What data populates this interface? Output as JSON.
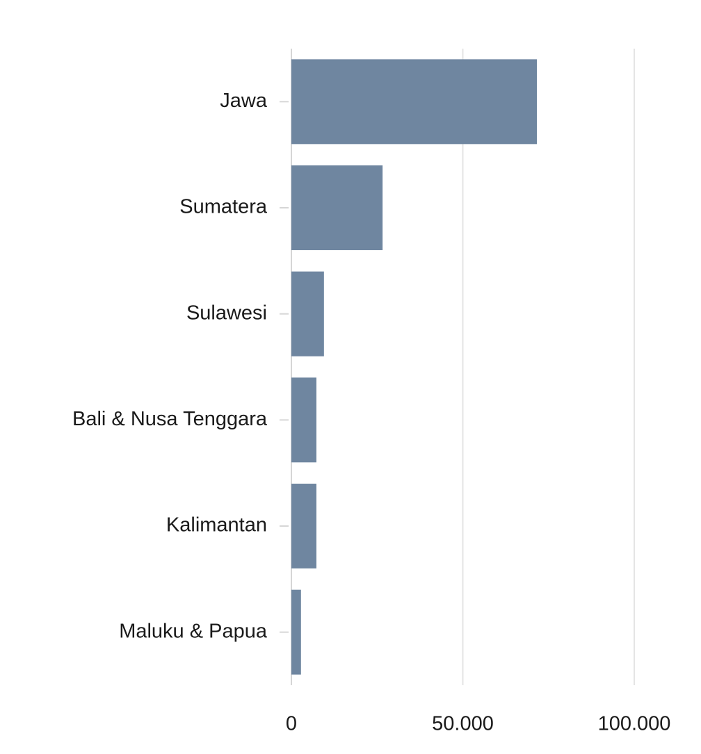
{
  "chart_data": {
    "type": "bar",
    "orientation": "horizontal",
    "categories": [
      "Jawa",
      "Sumatera",
      "Sulawesi",
      "Bali & Nusa Tenggara",
      "Kalimantan",
      "Maluku & Papua"
    ],
    "values": [
      71600,
      26600,
      9500,
      7300,
      7300,
      2800
    ],
    "color": "#6f86a0",
    "xlim": [
      0,
      100000
    ],
    "xticks": [
      0,
      {
        "value": 50000,
        "label": "50.000"
      },
      {
        "value": 100000,
        "label": "100.000"
      }
    ],
    "grid": true
  }
}
